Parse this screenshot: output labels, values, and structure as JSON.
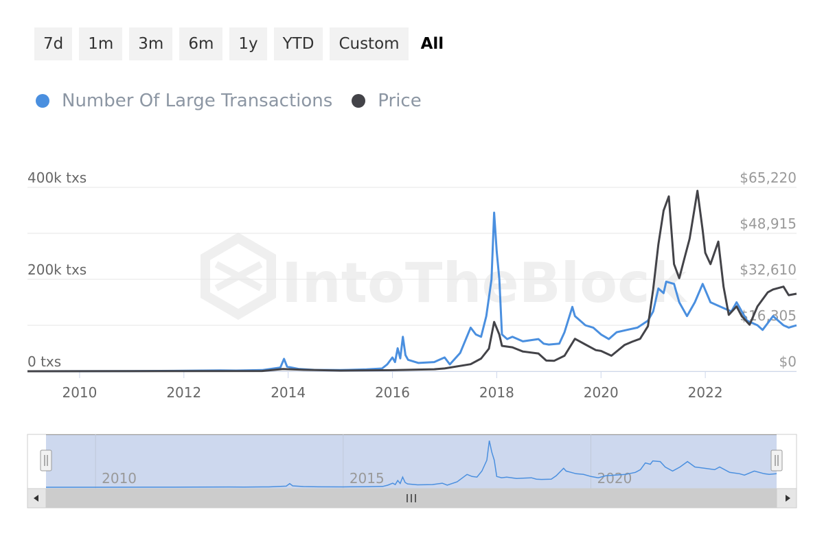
{
  "range_selector": {
    "buttons": [
      "7d",
      "1m",
      "3m",
      "6m",
      "1y",
      "YTD",
      "Custom",
      "All"
    ],
    "active": "All"
  },
  "watermark": "IntoTheBlock",
  "colors": {
    "transactions": "#4a8fdf",
    "price": "#434348",
    "navigator_fill": "#cdd8ee",
    "grid": "#e6e6e6"
  },
  "navigator": {
    "ticks": [
      {
        "year": 2010,
        "label": "2010"
      },
      {
        "year": 2015,
        "label": "2015"
      },
      {
        "year": 2020,
        "label": "2020"
      }
    ],
    "handle_icon": "grip-lines-icon",
    "scroll_left_icon": "arrow-left-icon",
    "scroll_right_icon": "arrow-right-icon",
    "scroll_thumb_icon": "grip-lines-icon"
  },
  "chart_data": {
    "type": "line",
    "legend_position": "top-left",
    "grid": true,
    "x_axis": {
      "min": 2009.0,
      "max": 2023.75,
      "ticks": [
        {
          "value": 2010,
          "label": "2010"
        },
        {
          "value": 2012,
          "label": "2012"
        },
        {
          "value": 2014,
          "label": "2014"
        },
        {
          "value": 2016,
          "label": "2016"
        },
        {
          "value": 2018,
          "label": "2018"
        },
        {
          "value": 2020,
          "label": "2020"
        },
        {
          "value": 2022,
          "label": "2022"
        }
      ]
    },
    "y_axis_left": {
      "min": 0,
      "max": 400000,
      "ticks": [
        {
          "value": 0,
          "label": "0 txs"
        },
        {
          "value": 200000,
          "label": "200k txs"
        },
        {
          "value": 400000,
          "label": "400k txs"
        }
      ]
    },
    "y_axis_right": {
      "min": 0,
      "max": 65220,
      "ticks": [
        {
          "value": 0,
          "label": "$0"
        },
        {
          "value": 16305,
          "label": "$16,305"
        },
        {
          "value": 32610,
          "label": "$32,610"
        },
        {
          "value": 48915,
          "label": "$48,915"
        },
        {
          "value": 65220,
          "label": "$65,220"
        }
      ]
    },
    "series": [
      {
        "name": "Number Of Large Transactions",
        "axis": "left",
        "points": [
          [
            2009.0,
            0
          ],
          [
            2010.0,
            200
          ],
          [
            2011.0,
            500
          ],
          [
            2012.0,
            1000
          ],
          [
            2012.7,
            2000
          ],
          [
            2013.0,
            1500
          ],
          [
            2013.5,
            2500
          ],
          [
            2013.85,
            8000
          ],
          [
            2013.92,
            27000
          ],
          [
            2013.98,
            10000
          ],
          [
            2014.2,
            5000
          ],
          [
            2014.5,
            3000
          ],
          [
            2015.0,
            2500
          ],
          [
            2015.5,
            4000
          ],
          [
            2015.8,
            6000
          ],
          [
            2015.9,
            15000
          ],
          [
            2016.0,
            30000
          ],
          [
            2016.05,
            20000
          ],
          [
            2016.1,
            50000
          ],
          [
            2016.15,
            28000
          ],
          [
            2016.2,
            75000
          ],
          [
            2016.25,
            35000
          ],
          [
            2016.3,
            25000
          ],
          [
            2016.5,
            18000
          ],
          [
            2016.8,
            20000
          ],
          [
            2017.0,
            30000
          ],
          [
            2017.1,
            15000
          ],
          [
            2017.3,
            40000
          ],
          [
            2017.5,
            95000
          ],
          [
            2017.6,
            80000
          ],
          [
            2017.7,
            75000
          ],
          [
            2017.8,
            120000
          ],
          [
            2017.9,
            200000
          ],
          [
            2017.95,
            345000
          ],
          [
            2018.0,
            260000
          ],
          [
            2018.05,
            200000
          ],
          [
            2018.1,
            80000
          ],
          [
            2018.2,
            70000
          ],
          [
            2018.3,
            75000
          ],
          [
            2018.5,
            65000
          ],
          [
            2018.8,
            70000
          ],
          [
            2018.9,
            60000
          ],
          [
            2019.0,
            58000
          ],
          [
            2019.2,
            60000
          ],
          [
            2019.3,
            85000
          ],
          [
            2019.45,
            140000
          ],
          [
            2019.5,
            120000
          ],
          [
            2019.6,
            110000
          ],
          [
            2019.7,
            100000
          ],
          [
            2019.85,
            95000
          ],
          [
            2020.0,
            80000
          ],
          [
            2020.15,
            70000
          ],
          [
            2020.3,
            85000
          ],
          [
            2020.5,
            90000
          ],
          [
            2020.7,
            95000
          ],
          [
            2020.9,
            110000
          ],
          [
            2021.0,
            130000
          ],
          [
            2021.1,
            180000
          ],
          [
            2021.2,
            170000
          ],
          [
            2021.25,
            195000
          ],
          [
            2021.4,
            190000
          ],
          [
            2021.5,
            150000
          ],
          [
            2021.65,
            120000
          ],
          [
            2021.8,
            150000
          ],
          [
            2021.95,
            190000
          ],
          [
            2022.1,
            150000
          ],
          [
            2022.3,
            140000
          ],
          [
            2022.5,
            130000
          ],
          [
            2022.6,
            150000
          ],
          [
            2022.8,
            110000
          ],
          [
            2023.0,
            100000
          ],
          [
            2023.1,
            90000
          ],
          [
            2023.3,
            120000
          ],
          [
            2023.5,
            100000
          ],
          [
            2023.6,
            95000
          ],
          [
            2023.75,
            100000
          ]
        ]
      },
      {
        "name": "Price",
        "axis": "right",
        "points": [
          [
            2009.0,
            0
          ],
          [
            2013.5,
            100
          ],
          [
            2013.9,
            800
          ],
          [
            2014.3,
            500
          ],
          [
            2015.0,
            250
          ],
          [
            2016.0,
            400
          ],
          [
            2016.8,
            700
          ],
          [
            2017.0,
            1000
          ],
          [
            2017.5,
            2500
          ],
          [
            2017.7,
            4500
          ],
          [
            2017.85,
            8000
          ],
          [
            2017.95,
            17500
          ],
          [
            2018.05,
            13000
          ],
          [
            2018.1,
            9000
          ],
          [
            2018.3,
            8500
          ],
          [
            2018.5,
            7000
          ],
          [
            2018.8,
            6300
          ],
          [
            2018.95,
            3800
          ],
          [
            2019.1,
            3700
          ],
          [
            2019.3,
            5500
          ],
          [
            2019.5,
            11500
          ],
          [
            2019.7,
            9500
          ],
          [
            2019.9,
            7500
          ],
          [
            2020.0,
            7200
          ],
          [
            2020.2,
            5500
          ],
          [
            2020.45,
            9300
          ],
          [
            2020.6,
            10500
          ],
          [
            2020.75,
            11500
          ],
          [
            2020.9,
            16000
          ],
          [
            2021.0,
            29000
          ],
          [
            2021.1,
            45000
          ],
          [
            2021.2,
            57000
          ],
          [
            2021.3,
            62000
          ],
          [
            2021.4,
            38000
          ],
          [
            2021.5,
            33000
          ],
          [
            2021.6,
            40000
          ],
          [
            2021.7,
            47000
          ],
          [
            2021.85,
            64000
          ],
          [
            2021.95,
            50000
          ],
          [
            2022.0,
            42000
          ],
          [
            2022.1,
            38000
          ],
          [
            2022.25,
            46000
          ],
          [
            2022.35,
            30000
          ],
          [
            2022.45,
            20000
          ],
          [
            2022.6,
            23000
          ],
          [
            2022.7,
            19500
          ],
          [
            2022.85,
            16500
          ],
          [
            2023.0,
            23000
          ],
          [
            2023.2,
            28000
          ],
          [
            2023.3,
            29000
          ],
          [
            2023.5,
            30000
          ],
          [
            2023.6,
            27000
          ],
          [
            2023.75,
            27500
          ]
        ]
      }
    ]
  }
}
